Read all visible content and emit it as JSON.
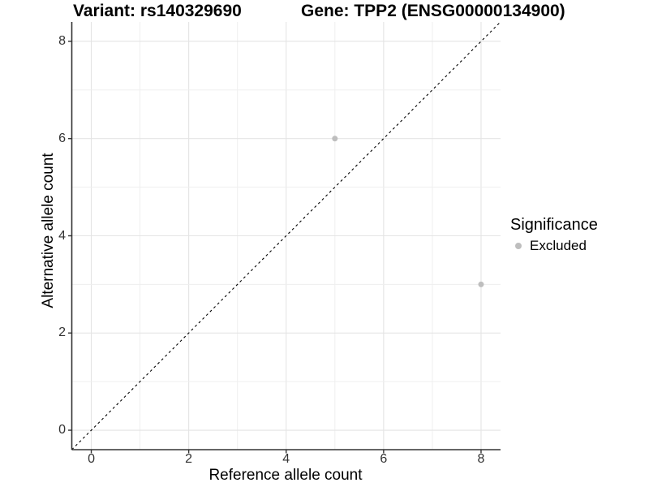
{
  "chart_data": {
    "type": "scatter",
    "titles": {
      "left": "Variant: rs140329690",
      "right": "Gene: TPP2 (ENSG00000134900)"
    },
    "xlabel": "Reference allele count",
    "ylabel": "Alternative allele count",
    "xlim": [
      -0.4,
      8.4
    ],
    "ylim": [
      -0.4,
      8.4
    ],
    "xticks": [
      0,
      2,
      4,
      6,
      8
    ],
    "yticks": [
      0,
      2,
      4,
      6,
      8
    ],
    "grid": {
      "show": true,
      "interval": 1,
      "major_interval": 2
    },
    "series": [
      {
        "name": "Excluded",
        "color": "#bebebe",
        "points": [
          {
            "x": 5,
            "y": 6
          },
          {
            "x": 8,
            "y": 3
          }
        ]
      }
    ],
    "reference_line": {
      "kind": "identity",
      "equation": "y = x",
      "style": "dashed",
      "color": "#000000"
    },
    "legend": {
      "title": "Significance",
      "position": "right",
      "items": [
        {
          "label": "Excluded",
          "color": "#bebebe",
          "marker": "circle"
        }
      ]
    },
    "colors": {
      "background": "#ffffff",
      "grid_major": "#e4e4e4",
      "grid_minor": "#eeeeee",
      "axis": "#333333",
      "tick_text": "#333333",
      "point": "#bebebe"
    }
  }
}
